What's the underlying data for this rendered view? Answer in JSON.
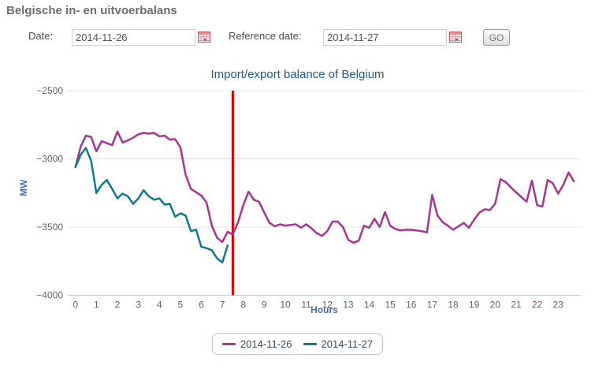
{
  "page": {
    "title": "Belgische in- en uitvoerbalans"
  },
  "controls": {
    "date_label": "Date:",
    "date_value": "2014-11-26",
    "reference_label": "Reference date:",
    "reference_value": "2014-11-27",
    "go_label": "GO"
  },
  "chart_data": {
    "type": "line",
    "title": "Import/export balance of Belgium",
    "xlabel": "Hours",
    "ylabel": "MW",
    "ylim": [
      -4000,
      -2500
    ],
    "xlim": [
      0,
      24
    ],
    "yticks": [
      -2500,
      -3000,
      -3500,
      -4000
    ],
    "xticks": [
      0,
      1,
      2,
      3,
      4,
      5,
      6,
      7,
      8,
      9,
      10,
      11,
      12,
      13,
      14,
      15,
      16,
      17,
      18,
      19,
      20,
      21,
      22,
      23
    ],
    "grid": true,
    "legend_position": "bottom",
    "x_step_hours": 0.25,
    "reference_line_x": 7.5,
    "reference_line_color": "#df0000",
    "series": [
      {
        "name": "2014-11-26",
        "color": "#a8348f",
        "x_start": 0,
        "values": [
          -3060,
          -2910,
          -2830,
          -2840,
          -2945,
          -2870,
          -2885,
          -2900,
          -2800,
          -2880,
          -2865,
          -2845,
          -2820,
          -2810,
          -2815,
          -2810,
          -2835,
          -2830,
          -2860,
          -2855,
          -2915,
          -3115,
          -3220,
          -3245,
          -3270,
          -3320,
          -3490,
          -3580,
          -3610,
          -3535,
          -3555,
          -3465,
          -3340,
          -3240,
          -3300,
          -3315,
          -3395,
          -3470,
          -3495,
          -3480,
          -3490,
          -3485,
          -3480,
          -3505,
          -3480,
          -3510,
          -3545,
          -3565,
          -3530,
          -3460,
          -3460,
          -3500,
          -3595,
          -3615,
          -3600,
          -3490,
          -3505,
          -3440,
          -3500,
          -3390,
          -3490,
          -3515,
          -3525,
          -3520,
          -3520,
          -3525,
          -3530,
          -3540,
          -3265,
          -3415,
          -3465,
          -3490,
          -3520,
          -3495,
          -3470,
          -3505,
          -3445,
          -3395,
          -3370,
          -3375,
          -3330,
          -3150,
          -3170,
          -3210,
          -3245,
          -3280,
          -3315,
          -3160,
          -3340,
          -3350,
          -3155,
          -3180,
          -3255,
          -3190,
          -3100,
          -3165
        ]
      },
      {
        "name": "2014-11-27",
        "color": "#0b7a8a",
        "x_start": 0,
        "values": [
          -3060,
          -2970,
          -2920,
          -3015,
          -3250,
          -3190,
          -3155,
          -3220,
          -3290,
          -3255,
          -3275,
          -3330,
          -3290,
          -3230,
          -3275,
          -3300,
          -3290,
          -3335,
          -3330,
          -3425,
          -3400,
          -3415,
          -3530,
          -3520,
          -3645,
          -3655,
          -3670,
          -3730,
          -3760,
          -3635
        ]
      }
    ]
  }
}
